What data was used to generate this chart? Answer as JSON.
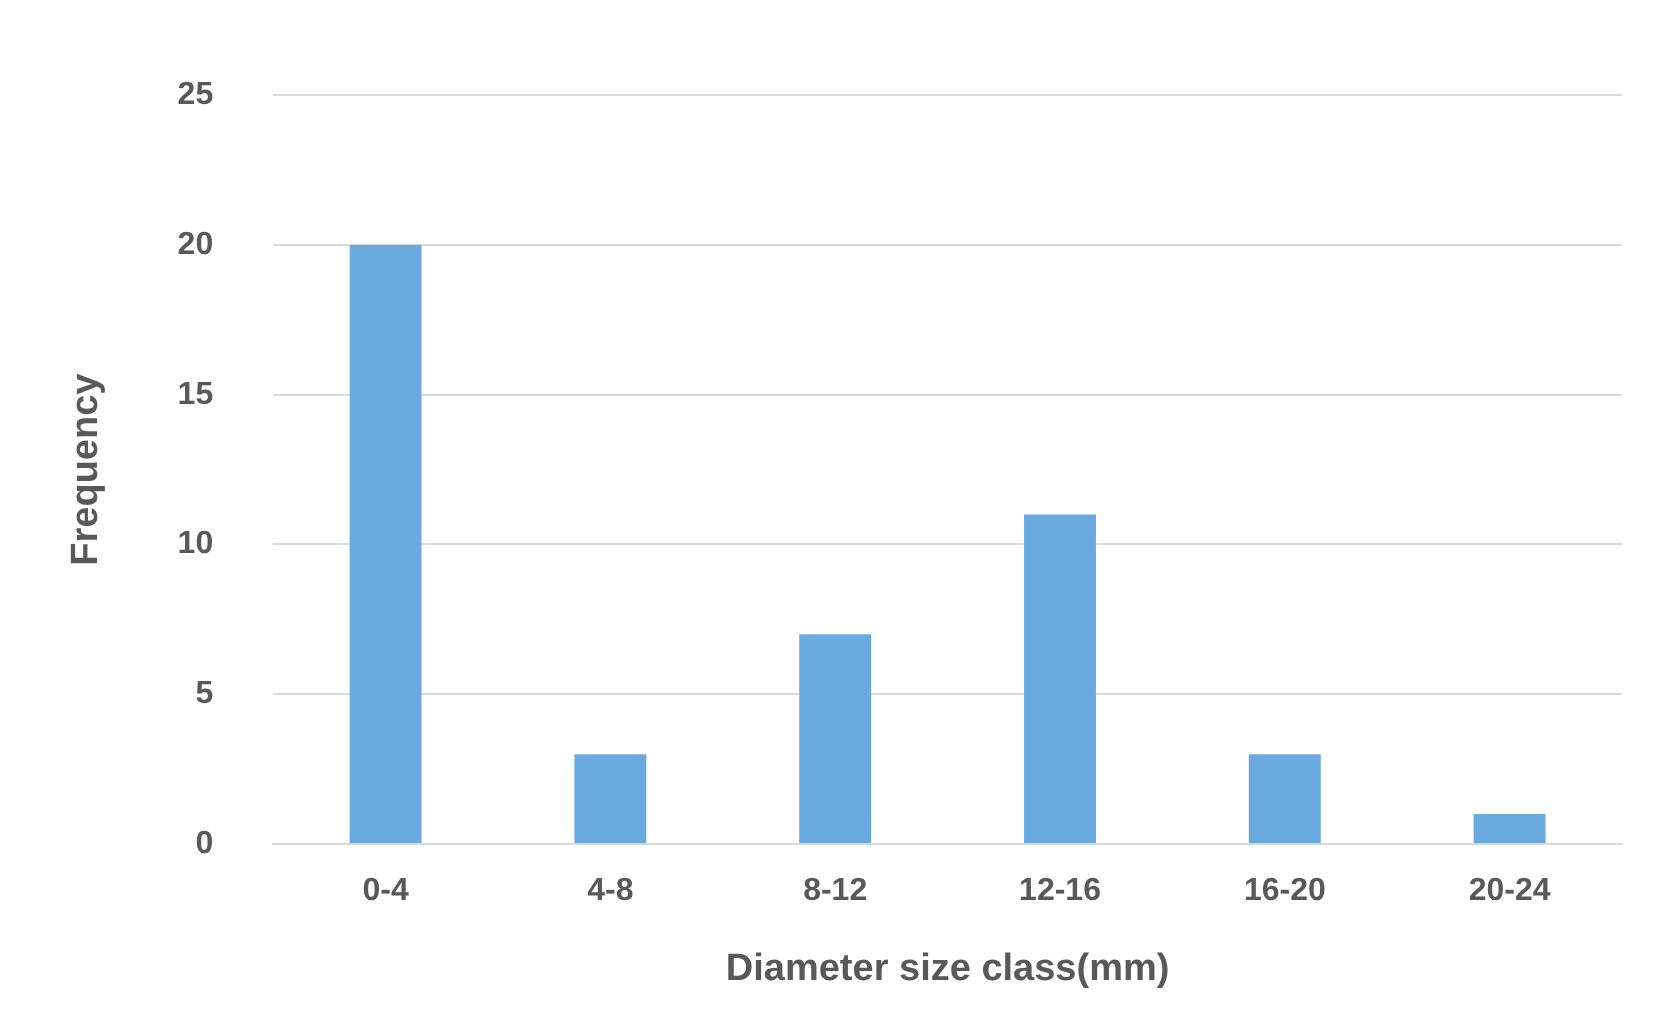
{
  "chart_data": {
    "type": "bar",
    "xlabel": "Diameter size class(mm)",
    "ylabel": "Frequency",
    "categories": [
      "0-4",
      "4-8",
      "8-12",
      "12-16",
      "16-20",
      "20-24"
    ],
    "values": [
      20,
      3,
      7,
      11,
      3,
      1
    ],
    "color": "#6aaade",
    "ylim": [
      0,
      25
    ],
    "yticks": [
      0,
      5,
      10,
      15,
      20,
      25
    ],
    "grid": "y",
    "legend": false
  }
}
